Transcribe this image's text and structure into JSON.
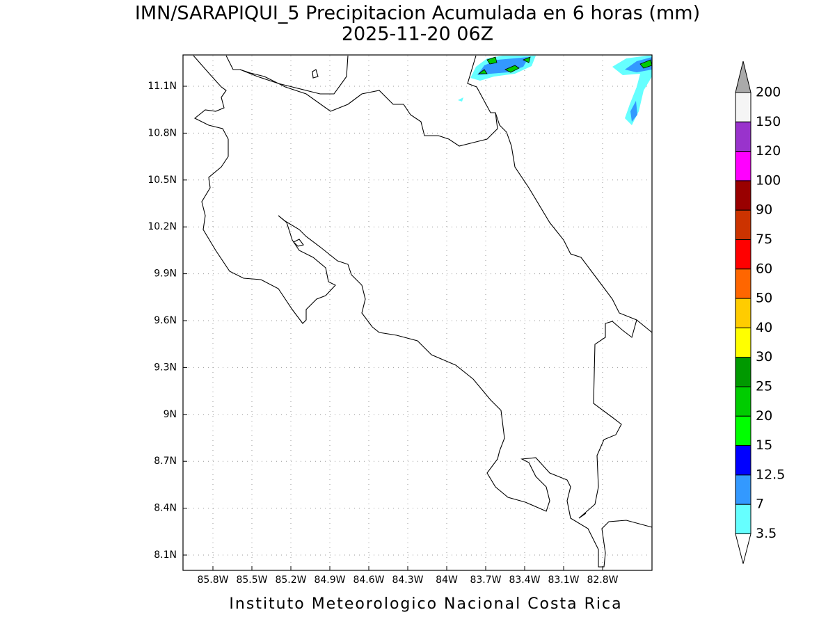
{
  "title": "IMN/SARAPIQUI_5 Precipitacion Acumulada en 6 horas (mm)",
  "subtitle": "2025-11-20 06Z",
  "map": {
    "x_labels": [
      "85.8W",
      "85.5W",
      "85.2W",
      "84.9W",
      "84.6W",
      "84.3W",
      "84W",
      "83.7W",
      "83.4W",
      "83.1W",
      "82.8W"
    ],
    "y_labels": [
      "11.1N",
      "10.8N",
      "10.5N",
      "10.2N",
      "9.9N",
      "9.6N",
      "9.3N",
      "9N",
      "8.7N",
      "8.4N",
      "8.1N"
    ],
    "grid": true
  },
  "colorbar": {
    "levels": [
      200,
      150,
      120,
      100,
      90,
      75,
      60,
      50,
      40,
      30,
      25,
      20,
      15,
      12.5,
      7,
      3.5
    ],
    "colors": [
      "#f5f5f5",
      "#9933cc",
      "#ff00ff",
      "#990000",
      "#cc3300",
      "#ff0000",
      "#ff6600",
      "#ffcc00",
      "#ffff00",
      "#009900",
      "#00cc00",
      "#00ff00",
      "#0000ff",
      "#3399ff",
      "#66ffff"
    ],
    "over_color": "#aaaaaa",
    "under_color": "#ffffff"
  },
  "footer": "Instituto Meteorologico Nacional Costa Rica"
}
